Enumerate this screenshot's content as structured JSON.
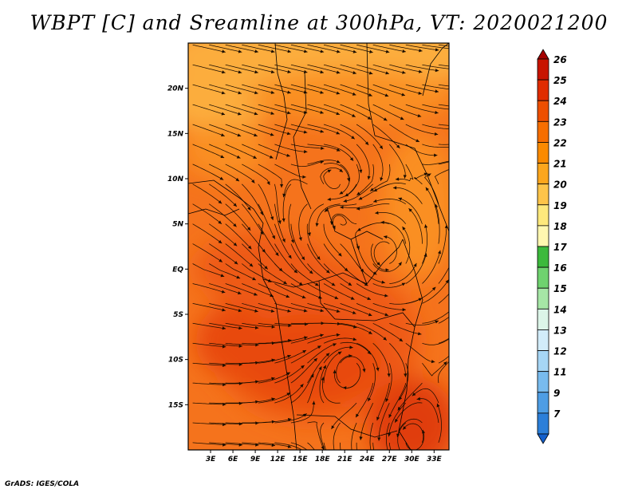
{
  "title": "WBPT [C] and Sreamline at 300hPa, VT: 2020021200",
  "footer": "GrADS: IGES/COLA",
  "chart_data": {
    "type": "heatmap",
    "variable": "WBPT [C]",
    "overlay": "streamlines at 300hPa",
    "valid_time": "2020021200",
    "x_tick_labels": [
      "3E",
      "6E",
      "9E",
      "12E",
      "15E",
      "18E",
      "21E",
      "24E",
      "27E",
      "30E",
      "33E"
    ],
    "x_ticks": [
      3,
      6,
      9,
      12,
      15,
      18,
      21,
      24,
      27,
      30,
      33
    ],
    "xlim": [
      0,
      35
    ],
    "y_tick_labels": [
      "20N",
      "15N",
      "10N",
      "5N",
      "EQ",
      "5S",
      "10S",
      "15S"
    ],
    "y_ticks": [
      20,
      15,
      10,
      5,
      0,
      -5,
      -10,
      -15
    ],
    "ylim": [
      -20,
      25
    ],
    "colorbar": {
      "labels": [
        "26",
        "25",
        "24",
        "23",
        "22",
        "21",
        "20",
        "19",
        "18",
        "17",
        "16",
        "15",
        "14",
        "13",
        "12",
        "11",
        "9",
        "7"
      ],
      "colors": [
        "#a50000",
        "#c81400",
        "#e02c00",
        "#ee4f00",
        "#f66e00",
        "#fa8a00",
        "#fca61d",
        "#fdc44a",
        "#fde87c",
        "#fff7b0",
        "#3cb93c",
        "#6fd26f",
        "#a6e6a6",
        "#dcf5e8",
        "#d2ecfa",
        "#a6d6f5",
        "#78bbee",
        "#4e9de4",
        "#2c7fd9",
        "#1460cc"
      ]
    },
    "field_colors": {
      "north_band": "#fcad3c",
      "north_mid": "#fa8f22",
      "central": "#f5731c",
      "south": "#ee5a12",
      "core": "#e84a0c",
      "southeast": "#e03c08"
    }
  }
}
